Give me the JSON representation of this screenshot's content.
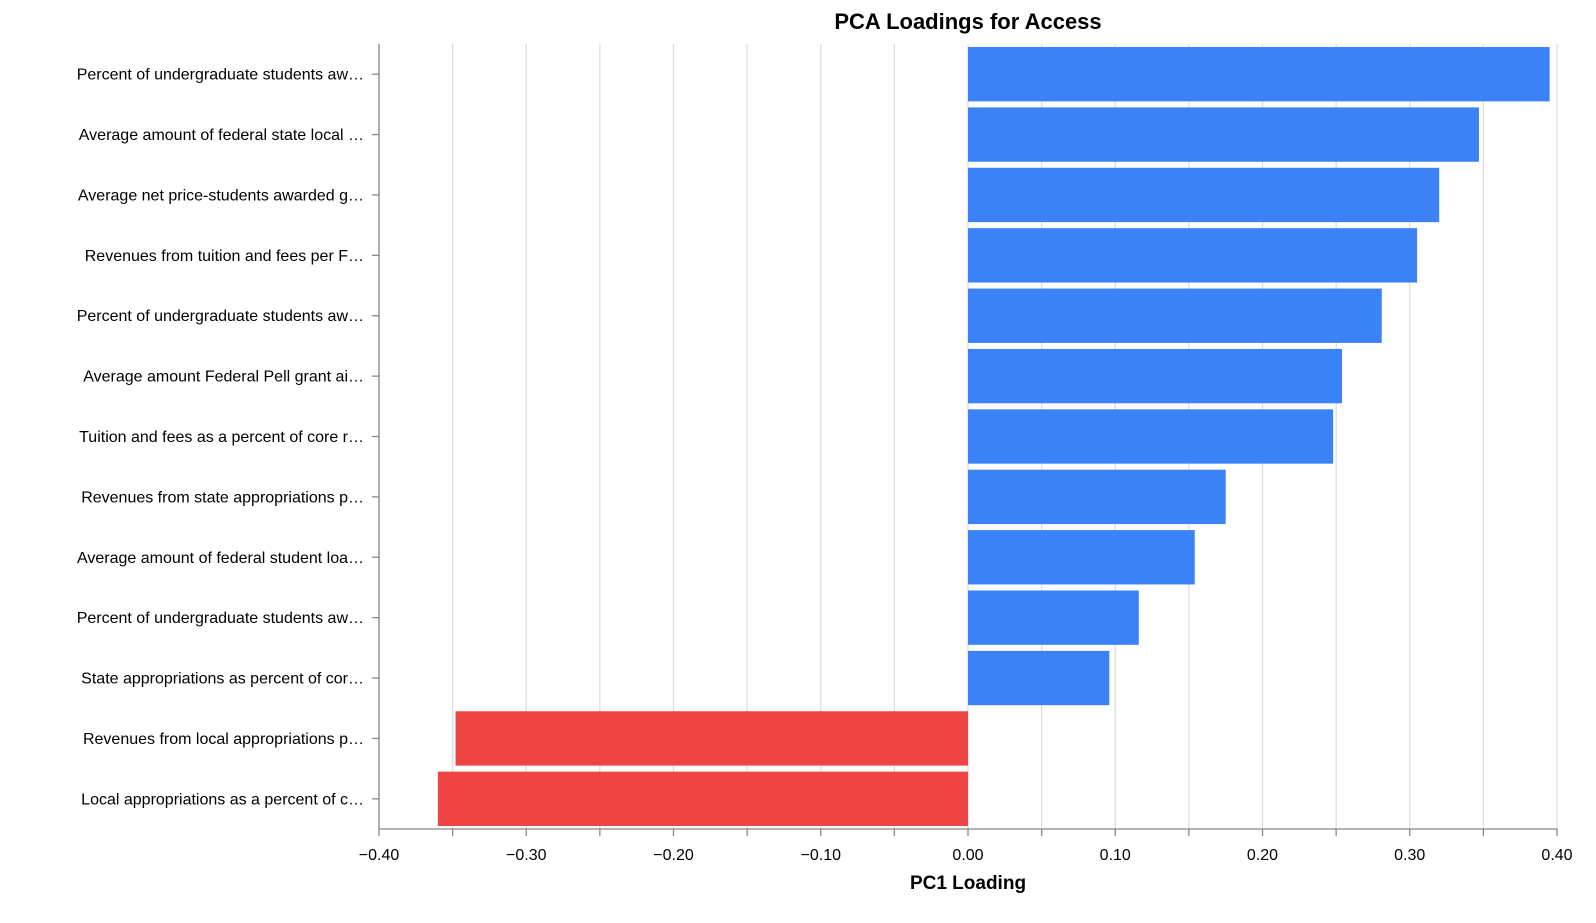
{
  "chart_data": {
    "type": "bar",
    "orientation": "horizontal",
    "title": "PCA Loadings for Access",
    "xlabel": "PC1 Loading",
    "ylabel": "",
    "xlim": [
      -0.4,
      0.4
    ],
    "x_ticks": [
      "−0.40",
      "−0.30",
      "−0.20",
      "−0.10",
      "0.00",
      "0.10",
      "0.20",
      "0.30",
      "0.40"
    ],
    "x_tick_values": [
      -0.4,
      -0.3,
      -0.2,
      -0.1,
      0.0,
      0.1,
      0.2,
      0.3,
      0.4
    ],
    "x_minor_tick_values": [
      -0.35,
      -0.25,
      -0.15,
      -0.05,
      0.05,
      0.15,
      0.25,
      0.35
    ],
    "grid": true,
    "colors": {
      "positive": "#3b82f6",
      "negative": "#ef4444"
    },
    "categories": [
      "Percent of undergraduate students aw…",
      "Average amount of federal state local …",
      "Average net price-students awarded g…",
      "Revenues from tuition and fees per F…",
      "Percent of undergraduate students aw…",
      "Average amount Federal Pell grant ai…",
      "Tuition and fees as a percent of core r…",
      "Revenues from state appropriations p…",
      "Average amount of federal student loa…",
      "Percent of undergraduate students aw…",
      "State appropriations as percent of cor…",
      "Revenues from local appropriations p…",
      "Local appropriations as a percent of c…"
    ],
    "values": [
      0.395,
      0.347,
      0.32,
      0.305,
      0.281,
      0.254,
      0.248,
      0.175,
      0.154,
      0.116,
      0.096,
      -0.348,
      -0.36
    ]
  }
}
